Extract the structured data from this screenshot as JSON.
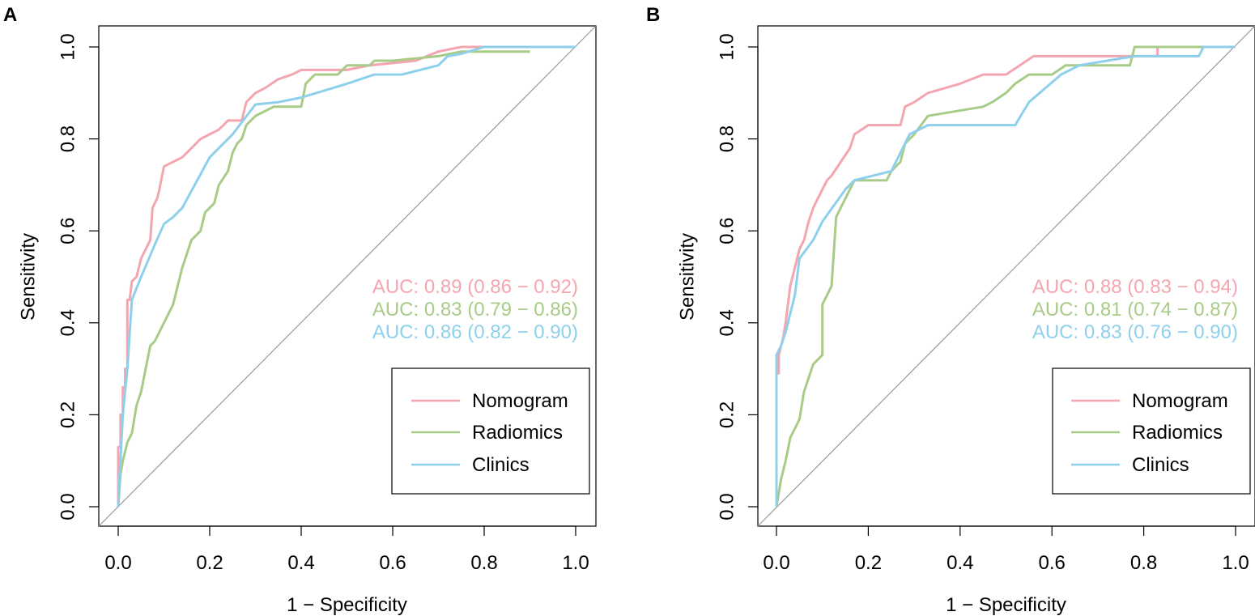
{
  "chart_data": [
    {
      "type": "line",
      "panel_label": "A",
      "xlabel": "1 − Specificity",
      "ylabel": "Sensitivity",
      "xlim": [
        0,
        1
      ],
      "ylim": [
        0,
        1
      ],
      "xticks": [
        "0.0",
        "0.2",
        "0.4",
        "0.6",
        "0.8",
        "1.0"
      ],
      "yticks": [
        "0.0",
        "0.2",
        "0.4",
        "0.6",
        "0.8",
        "1.0"
      ],
      "diagonal": true,
      "legend_position": "bottom-right",
      "series": [
        {
          "name": "Nomogram",
          "color": "#F4A6B0",
          "auc_text": "AUC: 0.89 (0.86 − 0.92)",
          "points": [
            [
              0,
              0
            ],
            [
              0,
              0.13
            ],
            [
              0.005,
              0.13
            ],
            [
              0.005,
              0.2
            ],
            [
              0.01,
              0.2
            ],
            [
              0.01,
              0.26
            ],
            [
              0.015,
              0.26
            ],
            [
              0.015,
              0.3
            ],
            [
              0.02,
              0.3
            ],
            [
              0.02,
              0.45
            ],
            [
              0.025,
              0.45
            ],
            [
              0.03,
              0.49
            ],
            [
              0.04,
              0.5
            ],
            [
              0.05,
              0.54
            ],
            [
              0.06,
              0.56
            ],
            [
              0.07,
              0.58
            ],
            [
              0.075,
              0.65
            ],
            [
              0.085,
              0.67
            ],
            [
              0.09,
              0.69
            ],
            [
              0.1,
              0.74
            ],
            [
              0.12,
              0.75
            ],
            [
              0.14,
              0.76
            ],
            [
              0.16,
              0.78
            ],
            [
              0.18,
              0.8
            ],
            [
              0.2,
              0.81
            ],
            [
              0.22,
              0.82
            ],
            [
              0.24,
              0.84
            ],
            [
              0.27,
              0.84
            ],
            [
              0.28,
              0.88
            ],
            [
              0.3,
              0.9
            ],
            [
              0.32,
              0.91
            ],
            [
              0.35,
              0.93
            ],
            [
              0.38,
              0.94
            ],
            [
              0.4,
              0.95
            ],
            [
              0.5,
              0.95
            ],
            [
              0.55,
              0.96
            ],
            [
              0.65,
              0.97
            ],
            [
              0.7,
              0.99
            ],
            [
              0.75,
              1.0
            ],
            [
              1,
              1
            ]
          ]
        },
        {
          "name": "Radiomics",
          "color": "#A8CC88",
          "auc_text": "AUC: 0.83 (0.79 − 0.86)",
          "points": [
            [
              0,
              0
            ],
            [
              0.005,
              0.07
            ],
            [
              0.01,
              0.1
            ],
            [
              0.02,
              0.14
            ],
            [
              0.03,
              0.16
            ],
            [
              0.04,
              0.22
            ],
            [
              0.05,
              0.25
            ],
            [
              0.06,
              0.3
            ],
            [
              0.07,
              0.35
            ],
            [
              0.08,
              0.36
            ],
            [
              0.09,
              0.38
            ],
            [
              0.1,
              0.4
            ],
            [
              0.11,
              0.42
            ],
            [
              0.12,
              0.44
            ],
            [
              0.13,
              0.48
            ],
            [
              0.14,
              0.52
            ],
            [
              0.15,
              0.55
            ],
            [
              0.16,
              0.58
            ],
            [
              0.18,
              0.6
            ],
            [
              0.19,
              0.64
            ],
            [
              0.21,
              0.66
            ],
            [
              0.22,
              0.7
            ],
            [
              0.24,
              0.73
            ],
            [
              0.25,
              0.77
            ],
            [
              0.26,
              0.79
            ],
            [
              0.27,
              0.8
            ],
            [
              0.28,
              0.83
            ],
            [
              0.3,
              0.85
            ],
            [
              0.32,
              0.86
            ],
            [
              0.34,
              0.87
            ],
            [
              0.4,
              0.87
            ],
            [
              0.41,
              0.92
            ],
            [
              0.43,
              0.94
            ],
            [
              0.48,
              0.94
            ],
            [
              0.5,
              0.96
            ],
            [
              0.55,
              0.96
            ],
            [
              0.56,
              0.97
            ],
            [
              0.6,
              0.97
            ],
            [
              0.7,
              0.98
            ],
            [
              0.75,
              0.99
            ],
            [
              0.9,
              0.99
            ]
          ]
        },
        {
          "name": "Clinics",
          "color": "#8ED0EC",
          "auc_text": "AUC: 0.86 (0.82 − 0.90)",
          "points": [
            [
              0,
              0
            ],
            [
              0.005,
              0.1
            ],
            [
              0.01,
              0.2
            ],
            [
              0.02,
              0.3
            ],
            [
              0.03,
              0.45
            ],
            [
              0.05,
              0.5
            ],
            [
              0.08,
              0.57
            ],
            [
              0.1,
              0.615
            ],
            [
              0.12,
              0.63
            ],
            [
              0.14,
              0.65
            ],
            [
              0.2,
              0.76
            ],
            [
              0.25,
              0.81
            ],
            [
              0.3,
              0.875
            ],
            [
              0.35,
              0.88
            ],
            [
              0.4,
              0.89
            ],
            [
              0.5,
              0.92
            ],
            [
              0.56,
              0.94
            ],
            [
              0.62,
              0.94
            ],
            [
              0.7,
              0.96
            ],
            [
              0.72,
              0.98
            ],
            [
              0.75,
              0.985
            ],
            [
              0.8,
              1.0
            ],
            [
              1,
              1
            ]
          ]
        }
      ]
    },
    {
      "type": "line",
      "panel_label": "B",
      "xlabel": "1 − Specificity",
      "ylabel": "Sensitivity",
      "xlim": [
        0,
        1
      ],
      "ylim": [
        0,
        1
      ],
      "xticks": [
        "0.0",
        "0.2",
        "0.4",
        "0.6",
        "0.8",
        "1.0"
      ],
      "yticks": [
        "0.0",
        "0.2",
        "0.4",
        "0.6",
        "0.8",
        "1.0"
      ],
      "diagonal": true,
      "legend_position": "bottom-right",
      "series": [
        {
          "name": "Nomogram",
          "color": "#F4A6B0",
          "auc_text": "AUC: 0.88 (0.83 − 0.94)",
          "points": [
            [
              0,
              0.29
            ],
            [
              0.005,
              0.29
            ],
            [
              0.005,
              0.33
            ],
            [
              0.01,
              0.35
            ],
            [
              0.015,
              0.37
            ],
            [
              0.02,
              0.4
            ],
            [
              0.03,
              0.48
            ],
            [
              0.04,
              0.52
            ],
            [
              0.05,
              0.56
            ],
            [
              0.06,
              0.58
            ],
            [
              0.07,
              0.62
            ],
            [
              0.08,
              0.65
            ],
            [
              0.09,
              0.67
            ],
            [
              0.1,
              0.69
            ],
            [
              0.11,
              0.71
            ],
            [
              0.12,
              0.72
            ],
            [
              0.14,
              0.75
            ],
            [
              0.16,
              0.78
            ],
            [
              0.17,
              0.81
            ],
            [
              0.2,
              0.83
            ],
            [
              0.27,
              0.83
            ],
            [
              0.28,
              0.87
            ],
            [
              0.3,
              0.88
            ],
            [
              0.33,
              0.9
            ],
            [
              0.4,
              0.92
            ],
            [
              0.45,
              0.94
            ],
            [
              0.5,
              0.94
            ],
            [
              0.56,
              0.98
            ],
            [
              0.83,
              0.98
            ],
            [
              0.83,
              1.0
            ],
            [
              1,
              1
            ]
          ]
        },
        {
          "name": "Radiomics",
          "color": "#A8CC88",
          "auc_text": "AUC: 0.81 (0.74 − 0.87)",
          "points": [
            [
              0,
              0
            ],
            [
              0.01,
              0.06
            ],
            [
              0.02,
              0.1
            ],
            [
              0.03,
              0.15
            ],
            [
              0.05,
              0.19
            ],
            [
              0.06,
              0.25
            ],
            [
              0.08,
              0.31
            ],
            [
              0.1,
              0.33
            ],
            [
              0.1,
              0.44
            ],
            [
              0.12,
              0.48
            ],
            [
              0.13,
              0.63
            ],
            [
              0.15,
              0.67
            ],
            [
              0.17,
              0.71
            ],
            [
              0.24,
              0.71
            ],
            [
              0.25,
              0.73
            ],
            [
              0.27,
              0.75
            ],
            [
              0.28,
              0.79
            ],
            [
              0.3,
              0.81
            ],
            [
              0.33,
              0.85
            ],
            [
              0.45,
              0.87
            ],
            [
              0.47,
              0.88
            ],
            [
              0.5,
              0.9
            ],
            [
              0.52,
              0.92
            ],
            [
              0.55,
              0.94
            ],
            [
              0.6,
              0.94
            ],
            [
              0.63,
              0.96
            ],
            [
              0.77,
              0.96
            ],
            [
              0.78,
              1.0
            ],
            [
              1,
              1
            ]
          ]
        },
        {
          "name": "Clinics",
          "color": "#8ED0EC",
          "auc_text": "AUC: 0.83 (0.76 − 0.90)",
          "points": [
            [
              0,
              0
            ],
            [
              0,
              0.33
            ],
            [
              0.01,
              0.35
            ],
            [
              0.02,
              0.38
            ],
            [
              0.03,
              0.42
            ],
            [
              0.04,
              0.46
            ],
            [
              0.05,
              0.54
            ],
            [
              0.08,
              0.58
            ],
            [
              0.1,
              0.62
            ],
            [
              0.15,
              0.69
            ],
            [
              0.17,
              0.71
            ],
            [
              0.25,
              0.73
            ],
            [
              0.29,
              0.81
            ],
            [
              0.33,
              0.83
            ],
            [
              0.52,
              0.83
            ],
            [
              0.55,
              0.88
            ],
            [
              0.62,
              0.94
            ],
            [
              0.66,
              0.96
            ],
            [
              0.78,
              0.98
            ],
            [
              0.92,
              0.98
            ],
            [
              0.93,
              1.0
            ],
            [
              1,
              1
            ]
          ]
        }
      ]
    }
  ]
}
